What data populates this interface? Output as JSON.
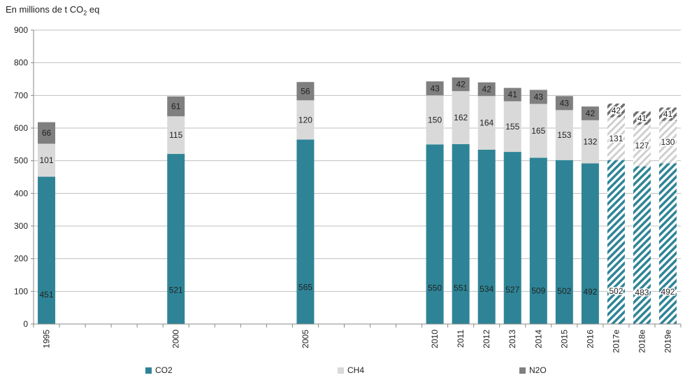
{
  "unit_label": {
    "prefix": "En millions  de t CO",
    "subscript": "2",
    "suffix": " eq"
  },
  "legend": [
    {
      "name": "CO2",
      "color": "#2e8496"
    },
    {
      "name": "CH4",
      "color": "#d9d9d9"
    },
    {
      "name": "N2O",
      "color": "#7f7f7f"
    }
  ],
  "chart_data": {
    "type": "bar",
    "stacked": true,
    "title": "",
    "xlabel": "",
    "ylabel": "En millions de t CO2 eq",
    "ylim": [
      0,
      900
    ],
    "yticks": [
      0,
      100,
      200,
      300,
      400,
      500,
      600,
      700,
      800,
      900
    ],
    "grid": true,
    "categories": [
      "1995",
      "",
      "",
      "",
      "",
      "2000",
      "",
      "",
      "",
      "",
      "2005",
      "",
      "",
      "",
      "",
      "2010",
      "2011",
      "2012",
      "2013",
      "2014",
      "2015",
      "2016",
      "2017e",
      "2018e",
      "2019e"
    ],
    "estimated": [
      false,
      false,
      false,
      false,
      false,
      false,
      false,
      false,
      false,
      false,
      false,
      false,
      false,
      false,
      false,
      false,
      false,
      false,
      false,
      false,
      false,
      false,
      true,
      true,
      true
    ],
    "series": [
      {
        "name": "CO2",
        "color": "#2e8496",
        "values": [
          451,
          null,
          null,
          null,
          null,
          521,
          null,
          null,
          null,
          null,
          565,
          null,
          null,
          null,
          null,
          550,
          551,
          534,
          527,
          509,
          502,
          492,
          502,
          483,
          492
        ]
      },
      {
        "name": "CH4",
        "color": "#d9d9d9",
        "values": [
          101,
          null,
          null,
          null,
          null,
          115,
          null,
          null,
          null,
          null,
          120,
          null,
          null,
          null,
          null,
          150,
          162,
          164,
          155,
          165,
          153,
          132,
          131,
          127,
          130
        ]
      },
      {
        "name": "N2O",
        "color": "#7f7f7f",
        "values": [
          66,
          null,
          null,
          null,
          null,
          61,
          null,
          null,
          null,
          null,
          56,
          null,
          null,
          null,
          null,
          43,
          42,
          42,
          41,
          43,
          43,
          42,
          42,
          41,
          41
        ]
      }
    ],
    "legend_position": "bottom"
  }
}
